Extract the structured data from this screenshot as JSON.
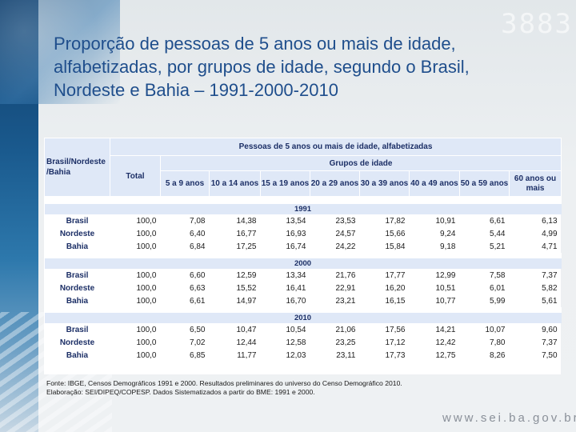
{
  "decor": {
    "top_right": "3883"
  },
  "title": {
    "line1": "Proporção de pessoas de 5 anos ou mais de idade,",
    "line2": "alfabetizadas, por grupos de idade, segundo o Brasil,",
    "line3": "Nordeste e Bahia – 1991-2000-2010"
  },
  "table": {
    "stub_header_line1": "Brasil/Nordeste",
    "stub_header_line2": "/Bahia",
    "main_header": "Pessoas de 5 anos ou mais de idade, alfabetizadas",
    "total_header": "Total",
    "groups_header": "Grupos de idade",
    "age_groups": [
      "5 a 9 anos",
      "10 a 14 anos",
      "15 a 19 anos",
      "20 a 29 anos",
      "30 a 39 anos",
      "40 a 49 anos",
      "50 a 59 anos",
      "60 anos ou mais"
    ],
    "years": [
      {
        "year": "1991",
        "rows": [
          {
            "location": "Brasil",
            "values": [
              "100,0",
              "7,08",
              "14,38",
              "13,54",
              "23,53",
              "17,82",
              "10,91",
              "6,61",
              "6,13"
            ]
          },
          {
            "location": "Nordeste",
            "values": [
              "100,0",
              "6,40",
              "16,77",
              "16,93",
              "24,57",
              "15,66",
              "9,24",
              "5,44",
              "4,99"
            ]
          },
          {
            "location": "Bahia",
            "values": [
              "100,0",
              "6,84",
              "17,25",
              "16,74",
              "24,22",
              "15,84",
              "9,18",
              "5,21",
              "4,71"
            ]
          }
        ]
      },
      {
        "year": "2000",
        "rows": [
          {
            "location": "Brasil",
            "values": [
              "100,0",
              "6,60",
              "12,59",
              "13,34",
              "21,76",
              "17,77",
              "12,99",
              "7,58",
              "7,37"
            ]
          },
          {
            "location": "Nordeste",
            "values": [
              "100,0",
              "6,63",
              "15,52",
              "16,41",
              "22,91",
              "16,20",
              "10,51",
              "6,01",
              "5,82"
            ]
          },
          {
            "location": "Bahia",
            "values": [
              "100,0",
              "6,61",
              "14,97",
              "16,70",
              "23,21",
              "16,15",
              "10,77",
              "5,99",
              "5,61"
            ]
          }
        ]
      },
      {
        "year": "2010",
        "rows": [
          {
            "location": "Brasil",
            "values": [
              "100,0",
              "6,50",
              "10,47",
              "10,54",
              "21,06",
              "17,56",
              "14,21",
              "10,07",
              "9,60"
            ]
          },
          {
            "location": "Nordeste",
            "values": [
              "100,0",
              "7,02",
              "12,44",
              "12,58",
              "23,25",
              "17,12",
              "12,42",
              "7,80",
              "7,37"
            ]
          },
          {
            "location": "Bahia",
            "values": [
              "100,0",
              "6,85",
              "11,77",
              "12,03",
              "23,11",
              "17,73",
              "12,75",
              "8,26",
              "7,50"
            ]
          }
        ]
      }
    ]
  },
  "source": {
    "line1": "Fonte: IBGE, Censos Demográficos 1991 e 2000. Resultados preliminares do universo do Censo Demográfico 2010.",
    "line2": "Elaboração: SEI/DIPEQ/COPESP. Dados Sistematizados a partir do BME: 1991 e 2000."
  },
  "footer": {
    "url": "www.sei.ba.gov.br"
  }
}
